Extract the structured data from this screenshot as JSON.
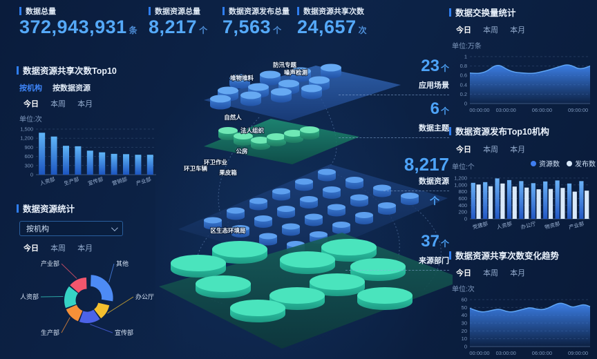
{
  "periods": [
    "今日",
    "本周",
    "本月"
  ],
  "kpis": [
    {
      "title": "数据总量",
      "value": "372,943,931",
      "unit": "条"
    },
    {
      "title": "数据资源总量",
      "value": "8,217",
      "unit": "个"
    },
    {
      "title": "数据资源发布总量",
      "value": "7,563",
      "unit": "个"
    },
    {
      "title": "数据资源共享次数",
      "value": "24,657",
      "unit": "次"
    }
  ],
  "share_top10": {
    "title": "数据资源共享次数Top10",
    "tabs": [
      "按机构",
      "按数据资源"
    ],
    "active_tab": "按机构",
    "unit": "单位:次",
    "chart_data": {
      "type": "bar",
      "title": "数据资源共享次数Top10",
      "categories_visible": [
        "人资部",
        "生产部",
        "宣传部",
        "营销部",
        "产业部"
      ],
      "values": [
        1380,
        1255,
        950,
        935,
        790,
        735,
        685,
        675,
        655,
        655
      ],
      "ylabel": "单位:次",
      "ymax": 1500,
      "yticks": [
        0,
        300,
        600,
        900,
        1200,
        1500
      ],
      "ytick_labels": [
        "0",
        "300",
        "600",
        "900",
        "1,200",
        "1,500"
      ],
      "bar_color": "#3f8ef0"
    }
  },
  "resource_stats": {
    "title": "数据资源统计",
    "dropdown": "按机构",
    "chart_data": {
      "type": "pie",
      "title": "数据资源统计",
      "slices": [
        {
          "label": "其他",
          "value": 28,
          "color": "#4d8bf5"
        },
        {
          "label": "办公厅",
          "value": 12,
          "color": "#f5c02e"
        },
        {
          "label": "宣传部",
          "value": 16,
          "color": "#4c63e8"
        },
        {
          "label": "生产部",
          "value": 13,
          "color": "#f59038"
        },
        {
          "label": "人资部",
          "value": 17,
          "color": "#36d3c5"
        },
        {
          "label": "产业部",
          "value": 14,
          "color": "#f3566d"
        }
      ],
      "exploded": "其他"
    }
  },
  "scene": {
    "layers": [
      {
        "labels": [
          "防汛专题",
          "噪声检测",
          "堆物堆料"
        ],
        "stat": {
          "value": "23",
          "unit": "个",
          "label": "应用场景"
        }
      },
      {
        "labels": [
          "自然人",
          "法人组织"
        ],
        "stat": {
          "value": "6",
          "unit": "个",
          "label": "数据主题"
        }
      },
      {
        "labels": [
          "公房",
          "环卫车辆",
          "环卫作业",
          "果皮箱"
        ],
        "stat": {
          "value": "8,217",
          "unit": "个",
          "label": "数据资源"
        }
      },
      {
        "labels": [
          "区生态环境局"
        ],
        "stat": {
          "value": "37",
          "unit": "个",
          "label": "来源部门"
        }
      }
    ]
  },
  "exchange_stats": {
    "title": "数据交换量统计",
    "unit": "单位:万条",
    "chart_data": {
      "type": "area",
      "title": "数据交换量统计",
      "ylabel": "万条",
      "ymax": 1,
      "yticks": [
        0,
        0.2,
        0.4,
        0.6,
        0.8,
        1
      ],
      "ytick_labels": [
        "0",
        "0.2",
        "0.4",
        "0.6",
        "0.8",
        "1"
      ],
      "x_tick_labels": [
        "00:00:00",
        "03:00:00",
        "06:00:00",
        "09:00:00"
      ],
      "x_tick_hours": [
        0,
        3,
        6,
        9
      ],
      "x_max_hours": 10,
      "values": [
        0.65,
        0.64,
        0.65,
        0.7,
        0.8,
        0.82,
        0.74,
        0.68,
        0.66,
        0.65,
        0.64,
        0.65,
        0.68,
        0.71,
        0.75,
        0.79,
        0.83,
        0.81,
        0.74,
        0.75,
        0.8
      ],
      "line_color": "#5fa5f5"
    }
  },
  "publish_top10": {
    "title": "数据资源发布Top10机构",
    "unit": "单位:个",
    "chart_data": {
      "type": "grouped-bar",
      "title": "数据资源发布Top10机构",
      "categories_visible": [
        "党建部",
        "人资部",
        "办公厅",
        "物资部",
        "产业部"
      ],
      "series": [
        {
          "name": "资源数",
          "color": "#3f7ef0",
          "values": [
            1060,
            1080,
            1190,
            1140,
            1110,
            1050,
            1100,
            1130,
            1040,
            1110
          ]
        },
        {
          "name": "发布数",
          "color": "#d9e9fa",
          "values": [
            1010,
            960,
            1040,
            950,
            920,
            870,
            880,
            910,
            800,
            830
          ]
        }
      ],
      "ymax": 1300,
      "yticks": [
        0,
        200,
        400,
        600,
        800,
        1000,
        1200
      ],
      "ytick_labels": [
        "0",
        "200",
        "400",
        "600",
        "800",
        "1,000",
        "1,200"
      ]
    }
  },
  "share_trend": {
    "title": "数据资源共享次数变化趋势",
    "unit": "单位:次",
    "chart_data": {
      "type": "area",
      "title": "数据资源共享次数变化趋势",
      "ylabel": "次",
      "ymax": 60,
      "yticks": [
        0,
        10,
        20,
        30,
        40,
        50,
        60
      ],
      "ytick_labels": [
        "0",
        "10",
        "20",
        "30",
        "40",
        "50",
        "60"
      ],
      "x_tick_labels": [
        "00:00:00",
        "03:00:00",
        "06:00:00",
        "09:00:00"
      ],
      "x_tick_hours": [
        0,
        3,
        6,
        9
      ],
      "x_max_hours": 10,
      "values": [
        49,
        46,
        44,
        45,
        47,
        48,
        45,
        44,
        46,
        48,
        50,
        48,
        47,
        49,
        53,
        56,
        54,
        50,
        52,
        54,
        51
      ],
      "line_color": "#5fa5f5"
    }
  }
}
